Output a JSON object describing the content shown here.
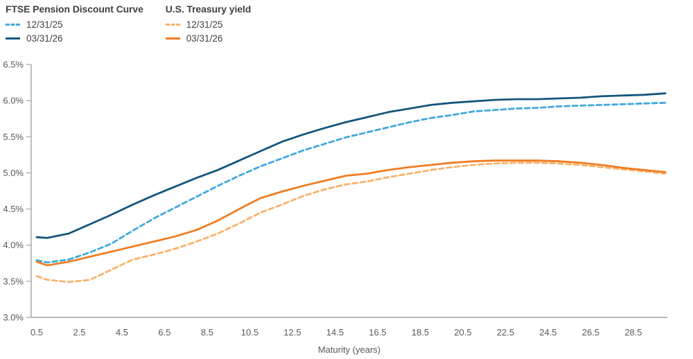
{
  "legend": {
    "groups": [
      {
        "title": "FTSE Pension Discount Curve",
        "items": [
          {
            "label": "12/31/25",
            "style": "dashed",
            "color": "#41A8DC"
          },
          {
            "label": "03/31/26",
            "style": "solid",
            "color": "#14567C"
          }
        ]
      },
      {
        "title": "U.S. Treasury yield",
        "items": [
          {
            "label": "12/31/25",
            "style": "dashed",
            "color": "#F9B26B"
          },
          {
            "label": "03/31/26",
            "style": "solid",
            "color": "#F07D22"
          }
        ]
      }
    ]
  },
  "chart_data": {
    "type": "line",
    "title": "",
    "xlabel": "Maturity (years)",
    "ylabel": "",
    "xlim": [
      0.5,
      30
    ],
    "ylim": [
      3.0,
      6.5
    ],
    "grid": false,
    "legend_position": "top-left",
    "axis_color": "#A2A4A7",
    "tick_label_color": "#58595B",
    "x_ticks": [
      0.5,
      2.5,
      4.5,
      6.5,
      8.5,
      10.5,
      12.5,
      14.5,
      16.5,
      18.5,
      20.5,
      22.5,
      24.5,
      26.5,
      28.5
    ],
    "x_tick_labels": [
      "0.5",
      "2.5",
      "4.5",
      "6.5",
      "8.5",
      "10.5",
      "12.5",
      "14.5",
      "16.5",
      "18.5",
      "20.5",
      "22.5",
      "24.5",
      "26.5",
      "28.5"
    ],
    "y_ticks": [
      3.0,
      3.5,
      4.0,
      4.5,
      5.0,
      5.5,
      6.0,
      6.5
    ],
    "y_tick_labels": [
      "3.0%",
      "3.5%",
      "4.0%",
      "4.5%",
      "5.0%",
      "5.5%",
      "6.0%",
      "6.5%"
    ],
    "x": [
      0.5,
      1,
      2,
      3,
      4,
      5,
      6,
      7,
      8,
      9,
      10,
      11,
      12,
      13,
      14,
      15,
      16,
      17,
      18,
      19,
      20,
      21,
      22,
      23,
      24,
      25,
      26,
      27,
      28,
      29,
      30
    ],
    "series": [
      {
        "name": "FTSE Pension Discount Curve 12/31/25",
        "style": "dashed",
        "color": "#41A8DC",
        "values": [
          3.79,
          3.76,
          3.8,
          3.9,
          4.02,
          4.2,
          4.37,
          4.52,
          4.67,
          4.82,
          4.96,
          5.09,
          5.2,
          5.31,
          5.4,
          5.49,
          5.56,
          5.63,
          5.7,
          5.76,
          5.8,
          5.85,
          5.87,
          5.89,
          5.9,
          5.92,
          5.93,
          5.94,
          5.95,
          5.96,
          5.97
        ]
      },
      {
        "name": "U.S. Treasury yield 12/31/25",
        "style": "dashed",
        "color": "#F9B26B",
        "values": [
          3.57,
          3.52,
          3.49,
          3.52,
          3.66,
          3.8,
          3.87,
          3.95,
          4.05,
          4.16,
          4.3,
          4.45,
          4.56,
          4.68,
          4.77,
          4.84,
          4.88,
          4.94,
          4.99,
          5.04,
          5.08,
          5.11,
          5.13,
          5.14,
          5.14,
          5.13,
          5.11,
          5.08,
          5.05,
          5.02,
          4.99
        ]
      },
      {
        "name": "U.S. Treasury yield 03/31/26",
        "style": "solid",
        "color": "#F07D22",
        "values": [
          3.77,
          3.72,
          3.77,
          3.84,
          3.91,
          3.98,
          4.05,
          4.12,
          4.21,
          4.34,
          4.5,
          4.65,
          4.74,
          4.82,
          4.89,
          4.96,
          4.99,
          5.04,
          5.08,
          5.11,
          5.14,
          5.16,
          5.17,
          5.17,
          5.17,
          5.16,
          5.14,
          5.11,
          5.07,
          5.04,
          5.01
        ]
      },
      {
        "name": "FTSE Pension Discount Curve 03/31/26",
        "style": "solid",
        "color": "#14567C",
        "values": [
          4.11,
          4.1,
          4.16,
          4.29,
          4.42,
          4.56,
          4.69,
          4.81,
          4.93,
          5.04,
          5.17,
          5.3,
          5.43,
          5.53,
          5.62,
          5.7,
          5.77,
          5.84,
          5.89,
          5.94,
          5.97,
          5.99,
          6.01,
          6.02,
          6.02,
          6.03,
          6.04,
          6.06,
          6.07,
          6.08,
          6.1
        ]
      }
    ]
  }
}
